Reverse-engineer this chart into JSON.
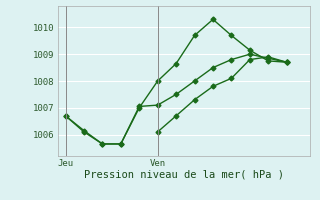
{
  "xlabel": "Pression niveau de la mer( hPa )",
  "bg_color": "#ddf2f2",
  "grid_color": "#ffffff",
  "line_color": "#1a6b1a",
  "ylim": [
    1005.2,
    1010.8
  ],
  "yticks": [
    1006,
    1007,
    1008,
    1009,
    1010
  ],
  "xlim": [
    -0.3,
    9.3
  ],
  "x_jeu": 0.0,
  "x_ven": 3.5,
  "xtick_labels": [
    "Jeu",
    "Ven"
  ],
  "xtick_positions": [
    0.0,
    3.5
  ],
  "series1_x": [
    0.0,
    0.7,
    1.4,
    2.1,
    2.8,
    3.5,
    4.2,
    4.9,
    5.6,
    6.3,
    7.0,
    7.7,
    8.4
  ],
  "series1_y": [
    1006.7,
    1006.1,
    1005.65,
    1005.65,
    1007.0,
    1008.0,
    1008.65,
    1009.7,
    1010.3,
    1009.7,
    1009.15,
    1008.75,
    1008.7
  ],
  "series2_x": [
    0.0,
    0.7,
    1.4,
    2.1,
    2.8,
    3.5,
    4.2,
    4.9,
    5.6,
    6.3,
    7.0,
    7.7,
    8.4
  ],
  "series2_y": [
    1006.7,
    1006.15,
    1005.65,
    1005.65,
    1007.05,
    1007.1,
    1007.5,
    1008.0,
    1008.5,
    1008.8,
    1009.0,
    1008.85,
    1008.7
  ],
  "series3_x": [
    3.5,
    4.2,
    4.9,
    5.6,
    6.3,
    7.0,
    7.7,
    8.4
  ],
  "series3_y": [
    1006.1,
    1006.7,
    1007.3,
    1007.8,
    1008.1,
    1008.8,
    1008.9,
    1008.7
  ],
  "marker_size": 2.5,
  "line_width": 1.0
}
